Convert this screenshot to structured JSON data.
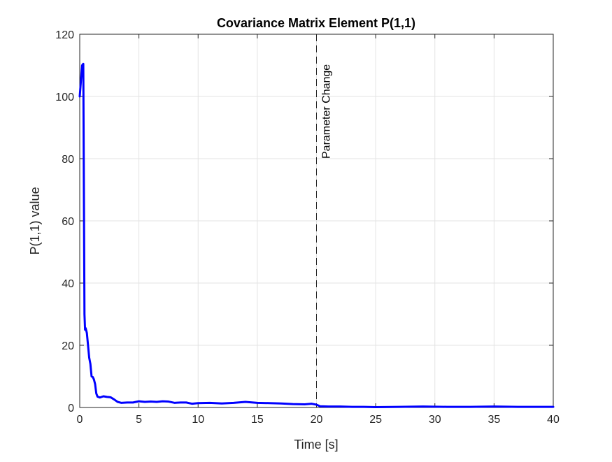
{
  "chart_data": {
    "type": "line",
    "title": "Covariance Matrix Element P(1,1)",
    "xlabel": "Time [s]",
    "ylabel": "P(1,1) value",
    "xlim": [
      0,
      40
    ],
    "ylim": [
      0,
      120
    ],
    "xticks": [
      0,
      5,
      10,
      15,
      20,
      25,
      30,
      35,
      40
    ],
    "yticks": [
      0,
      20,
      40,
      60,
      80,
      100,
      120
    ],
    "grid": true,
    "series": [
      {
        "name": "P(1,1)",
        "color": "#0000ff",
        "x": [
          0,
          0.1,
          0.2,
          0.3,
          0.4,
          0.45,
          0.5,
          0.6,
          0.7,
          0.8,
          0.9,
          1.0,
          1.1,
          1.2,
          1.3,
          1.4,
          1.5,
          1.7,
          2.0,
          2.3,
          2.6,
          2.9,
          3.2,
          3.5,
          4.0,
          4.5,
          5.0,
          5.5,
          6.0,
          6.5,
          7.0,
          7.5,
          8.0,
          8.5,
          9.0,
          9.5,
          10.0,
          11.0,
          12.0,
          13.0,
          14.0,
          15.0,
          16.0,
          17.0,
          18.0,
          19.0,
          19.6,
          20.0,
          20.3,
          21.0,
          22.0,
          23.0,
          24.0,
          25.0,
          27.0,
          29.0,
          31.0,
          33.0,
          35.0,
          37.0,
          39.0,
          40.0
        ],
        "values": [
          100,
          105,
          110,
          110.5,
          30,
          25,
          25.5,
          24,
          20,
          16,
          14,
          10,
          9.8,
          9,
          7.5,
          4.5,
          3.5,
          3.2,
          3.6,
          3.4,
          3.3,
          2.6,
          1.8,
          1.5,
          1.6,
          1.6,
          2.0,
          1.8,
          1.9,
          1.8,
          2.0,
          1.9,
          1.5,
          1.6,
          1.6,
          1.2,
          1.4,
          1.5,
          1.3,
          1.5,
          1.8,
          1.5,
          1.4,
          1.3,
          1.1,
          1.0,
          1.2,
          0.9,
          0.4,
          0.3,
          0.3,
          0.2,
          0.2,
          0.1,
          0.2,
          0.3,
          0.2,
          0.2,
          0.3,
          0.2,
          0.2,
          0.2
        ]
      }
    ],
    "vline": {
      "x": 20,
      "style": "dashed",
      "color": "#262626"
    },
    "annotation": {
      "text": "Parameter Change",
      "x": 20.3,
      "y": 80,
      "rotation": "vertical"
    }
  }
}
